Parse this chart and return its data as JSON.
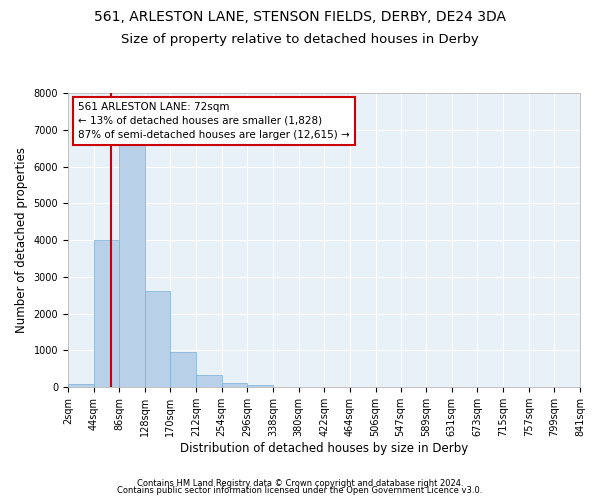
{
  "title": "561, ARLESTON LANE, STENSON FIELDS, DERBY, DE24 3DA",
  "subtitle": "Size of property relative to detached houses in Derby",
  "xlabel": "Distribution of detached houses by size in Derby",
  "ylabel": "Number of detached properties",
  "footnote1": "Contains HM Land Registry data © Crown copyright and database right 2024.",
  "footnote2": "Contains public sector information licensed under the Open Government Licence v3.0.",
  "bar_color": "#b8d0e8",
  "bar_edge_color": "#7aafd4",
  "bg_color": "#e8f0f8",
  "grid_color": "#ffffff",
  "property_size": 72,
  "property_label": "561 ARLESTON LANE: 72sqm",
  "annotation_line1": "← 13% of detached houses are smaller (1,828)",
  "annotation_line2": "87% of semi-detached houses are larger (12,615) →",
  "red_line_color": "#cc0000",
  "annotation_box_color": "#cc0000",
  "bin_edges": [
    2,
    44,
    86,
    128,
    170,
    212,
    254,
    296,
    338,
    380,
    422,
    464,
    506,
    547,
    589,
    631,
    673,
    715,
    757,
    799,
    841
  ],
  "bin_counts": [
    75,
    4000,
    6600,
    2620,
    950,
    330,
    105,
    55,
    15,
    0,
    0,
    0,
    0,
    0,
    0,
    0,
    0,
    0,
    0,
    0
  ],
  "ylim": [
    0,
    8000
  ],
  "yticks": [
    0,
    1000,
    2000,
    3000,
    4000,
    5000,
    6000,
    7000,
    8000
  ],
  "title_fontsize": 10,
  "subtitle_fontsize": 9.5,
  "axis_fontsize": 8.5,
  "tick_fontsize": 7,
  "annotation_fontsize": 7.5
}
